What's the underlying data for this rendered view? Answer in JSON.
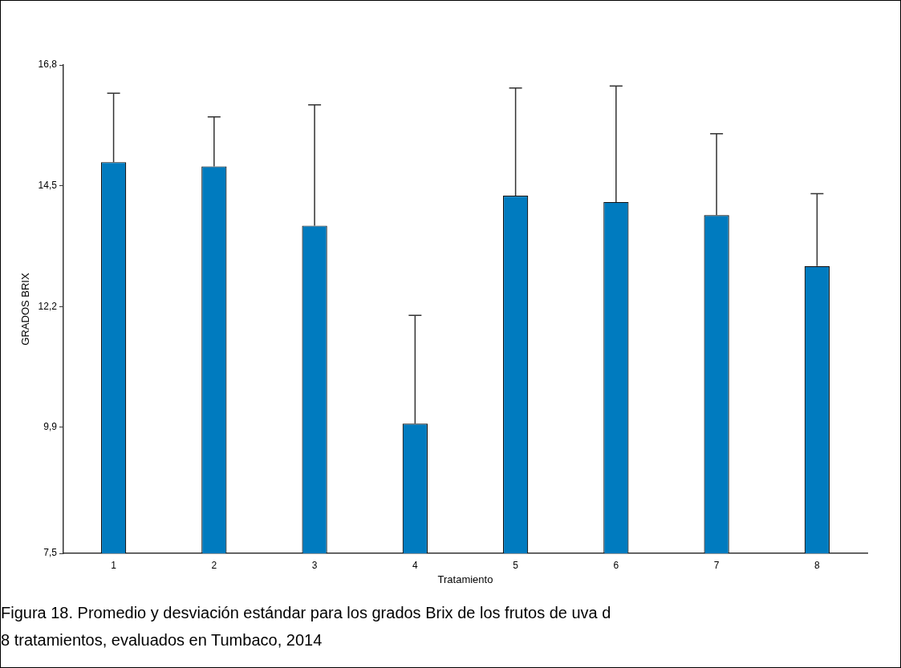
{
  "chart_data": {
    "type": "bar",
    "xlabel": "Tratamiento",
    "ylabel": "GRADOS BRIX",
    "categories": [
      "1",
      "2",
      "3",
      "4",
      "5",
      "6",
      "7",
      "8"
    ],
    "values": [
      14.95,
      14.87,
      13.74,
      9.97,
      14.31,
      14.19,
      13.94,
      12.97
    ],
    "errors": [
      1.31,
      0.94,
      2.3,
      2.06,
      2.05,
      2.21,
      1.55,
      1.38
    ],
    "color": "#007bbf",
    "ylim": [
      7.5,
      16.8
    ],
    "yticks": [
      {
        "value": 7.5,
        "label": "7,5"
      },
      {
        "value": 9.9,
        "label": "9,9"
      },
      {
        "value": 12.2,
        "label": "12,2"
      },
      {
        "value": 14.5,
        "label": "14,5"
      },
      {
        "value": 16.8,
        "label": "16,8"
      }
    ],
    "grid": false,
    "legend": false,
    "annotations": [
      "Figura 18. Promedio y desviación estándar para los grados Brix de los frutos de uva d",
      "8 tratamientos, evaluados en Tumbaco, 2014"
    ]
  }
}
